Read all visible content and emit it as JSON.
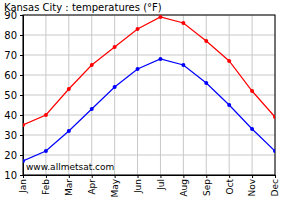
{
  "chart_data": {
    "type": "line",
    "title": "Kansas City : temperatures (°F)",
    "annotation": "www.allmetsat.com",
    "categories": [
      "Jan",
      "Feb",
      "Mar",
      "Apr",
      "May",
      "Jun",
      "Jul",
      "Aug",
      "Sep",
      "Oct",
      "Nov",
      "Dec"
    ],
    "series": [
      {
        "color": "#ff0000",
        "marker": "circle",
        "values": [
          35,
          40,
          53,
          65,
          74,
          83,
          89,
          86,
          77,
          67,
          52,
          39
        ]
      },
      {
        "color": "#0000ff",
        "marker": "circle",
        "values": [
          17,
          22,
          32,
          43,
          54,
          63,
          68,
          65,
          56,
          45,
          33,
          22
        ]
      }
    ],
    "ylim": [
      10,
      90
    ],
    "yticks": [
      10,
      20,
      30,
      40,
      50,
      60,
      70,
      80,
      90
    ],
    "grid": true
  }
}
